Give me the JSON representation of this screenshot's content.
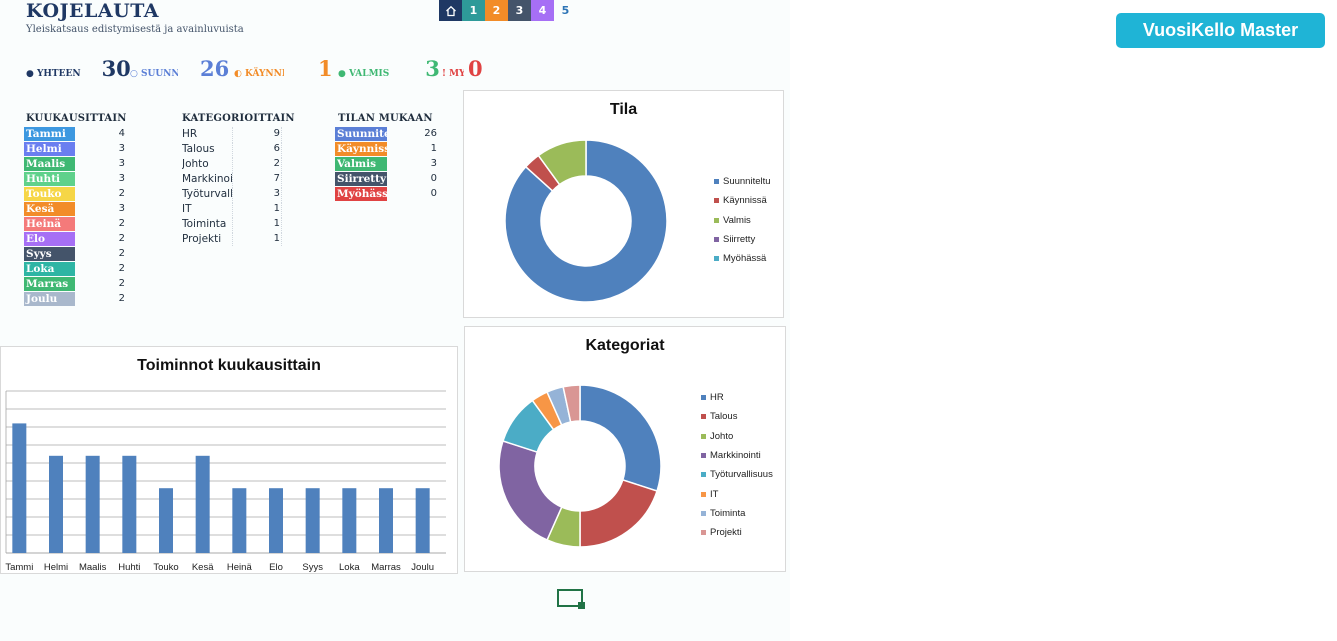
{
  "header": {
    "title": "KOJELAUTA",
    "subtitle": "Yleiskatsaus edistymisestä ja avainluvuista"
  },
  "nav": {
    "items": [
      {
        "label": "",
        "icon": "home-icon",
        "color": "#1f3864"
      },
      {
        "label": "1",
        "color": "#2e9a99"
      },
      {
        "label": "2",
        "color": "#f28c28"
      },
      {
        "label": "3",
        "color": "#44546a"
      },
      {
        "label": "4",
        "color": "#a66ff5"
      },
      {
        "label": "5",
        "color": ""
      }
    ]
  },
  "master_button": "VuosiKello Master",
  "stats": [
    {
      "label": "● YHTEEN",
      "value": "30",
      "color": "#1f3864"
    },
    {
      "label": "○ SUUNNITELTU",
      "value": "26",
      "color": "#5b7fd6"
    },
    {
      "label": "◐ KÄYNNISSÄ",
      "value": "1",
      "color": "#f28c28"
    },
    {
      "label": "● VALMIS",
      "value": "3",
      "color": "#3fb873"
    },
    {
      "label": "! MYÖHÄSSÄ",
      "value": "0",
      "color": "#e04343"
    }
  ],
  "sections": {
    "monthly": "KUUKAUSITTAIN",
    "category": "KATEGORIOITTAIN",
    "status": "TILAN MUKAAN"
  },
  "months": [
    {
      "name": "Tammi",
      "count": "4",
      "color": "#3d98e0"
    },
    {
      "name": "Helmi",
      "count": "3",
      "color": "#6a7ef0"
    },
    {
      "name": "Maalis",
      "count": "3",
      "color": "#3fb873"
    },
    {
      "name": "Huhti",
      "count": "3",
      "color": "#5fd18b"
    },
    {
      "name": "Touko",
      "count": "2",
      "color": "#f6d646"
    },
    {
      "name": "Kesä",
      "count": "3",
      "color": "#f28c28"
    },
    {
      "name": "Heinä",
      "count": "2",
      "color": "#f47a7a"
    },
    {
      "name": "Elo",
      "count": "2",
      "color": "#a66ff5"
    },
    {
      "name": "Syys",
      "count": "2",
      "color": "#44546a"
    },
    {
      "name": "Loka",
      "count": "2",
      "color": "#2eb5a4"
    },
    {
      "name": "Marras",
      "count": "2",
      "color": "#3fb873"
    },
    {
      "name": "Joulu",
      "count": "2",
      "color": "#a9b8cc"
    }
  ],
  "categories": [
    {
      "name": "HR",
      "count": "9"
    },
    {
      "name": "Talous",
      "count": "6"
    },
    {
      "name": "Johto",
      "count": "2"
    },
    {
      "name": "Markkinointi",
      "count": "7"
    },
    {
      "name": "Työturvallisuus",
      "count": "3"
    },
    {
      "name": "IT",
      "count": "1"
    },
    {
      "name": "Toiminta",
      "count": "1"
    },
    {
      "name": "Projekti",
      "count": "1"
    }
  ],
  "statuses": [
    {
      "name": "Suunniteltu",
      "count": "26",
      "color": "#5b7fd6"
    },
    {
      "name": "Käynnissä",
      "count": "1",
      "color": "#f28c28"
    },
    {
      "name": "Valmis",
      "count": "3",
      "color": "#3fb873"
    },
    {
      "name": "Siirretty",
      "count": "0",
      "color": "#44546a"
    },
    {
      "name": "Myöhässä",
      "count": "0",
      "color": "#e04343"
    }
  ],
  "chart_data": [
    {
      "type": "pie",
      "title": "Tila",
      "labels": [
        "Suunniteltu",
        "Käynnissä",
        "Valmis",
        "Siirretty",
        "Myöhässä"
      ],
      "values": [
        26,
        1,
        3,
        0,
        0
      ],
      "colors": [
        "#4f81bd",
        "#c0504d",
        "#9bbb59",
        "#8064a2",
        "#4bacc6"
      ],
      "donut": true,
      "legend": "right"
    },
    {
      "type": "pie",
      "title": "Kategoriat",
      "labels": [
        "HR",
        "Talous",
        "Johto",
        "Markkinointi",
        "Työturvallisuus",
        "IT",
        "Toiminta",
        "Projekti"
      ],
      "values": [
        9,
        6,
        2,
        7,
        3,
        1,
        1,
        1
      ],
      "colors": [
        "#4f81bd",
        "#c0504d",
        "#9bbb59",
        "#8064a2",
        "#4bacc6",
        "#f79646",
        "#95b3d7",
        "#d99694"
      ],
      "donut": true,
      "legend": "right"
    },
    {
      "type": "bar",
      "title": "Toiminnot kuukausittain",
      "categories": [
        "Tammi",
        "Helmi",
        "Maalis",
        "Huhti",
        "Touko",
        "Kesä",
        "Heinä",
        "Elo",
        "Syys",
        "Loka",
        "Marras",
        "Joulu"
      ],
      "values": [
        4,
        3,
        3,
        3,
        2,
        3,
        2,
        2,
        2,
        2,
        2,
        2
      ],
      "ylim": [
        0,
        5
      ],
      "grid": true,
      "bar_color": "#4f81bd"
    }
  ]
}
